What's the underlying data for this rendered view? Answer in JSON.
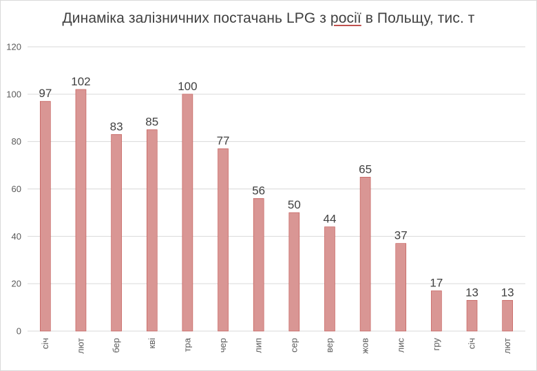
{
  "chart_data": {
    "type": "bar",
    "title_parts": [
      "Динаміка залізничних постачань LPG з ",
      "росії",
      " в Польщу, тис. т"
    ],
    "categories": [
      "січ",
      "лют",
      "бер",
      "кві",
      "тра",
      "чер",
      "лип",
      "сер",
      "вер",
      "жов",
      "лис",
      "гру",
      "січ",
      "лют"
    ],
    "values": [
      97,
      102,
      83,
      85,
      100,
      77,
      56,
      50,
      44,
      65,
      37,
      17,
      13,
      13
    ],
    "yticks": [
      "0",
      "20",
      "40",
      "60",
      "80",
      "100",
      "120"
    ],
    "ylim": [
      0,
      120
    ],
    "grid": true,
    "legend": "none",
    "bar_color": "#d99694",
    "bar_edge_color": "#c0504d"
  }
}
